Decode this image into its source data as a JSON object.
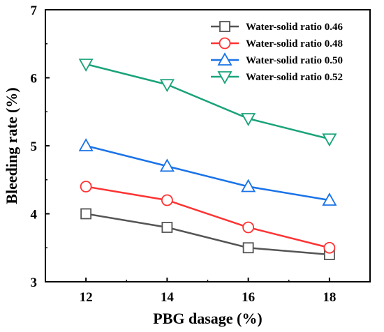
{
  "chart_data": {
    "type": "line",
    "xlabel": "PBG dasage (%)",
    "ylabel": "Bleeding rate (%)",
    "x": [
      12,
      14,
      16,
      18
    ],
    "xlim": [
      11,
      19
    ],
    "ylim": [
      3,
      7
    ],
    "xticks": [
      "12",
      "14",
      "16",
      "18"
    ],
    "yticks": [
      "3",
      "4",
      "5",
      "6",
      "7"
    ],
    "grid": false,
    "legend_position": "top-right",
    "series": [
      {
        "name": "Water-solid ratio  0.46",
        "values": [
          4.0,
          3.8,
          3.5,
          3.4
        ],
        "color": "#555555",
        "marker": "square"
      },
      {
        "name": "Water-solid ratio  0.48",
        "values": [
          4.4,
          4.2,
          3.8,
          3.5
        ],
        "color": "#ff3333",
        "marker": "circle"
      },
      {
        "name": "Water-solid ratio  0.50",
        "values": [
          5.0,
          4.7,
          4.4,
          4.2
        ],
        "color": "#1a73e8",
        "marker": "triangle-up"
      },
      {
        "name": "Water-solid ratio  0.52",
        "values": [
          6.2,
          5.9,
          5.4,
          5.1
        ],
        "color": "#1aa37a",
        "marker": "triangle-down"
      }
    ]
  }
}
